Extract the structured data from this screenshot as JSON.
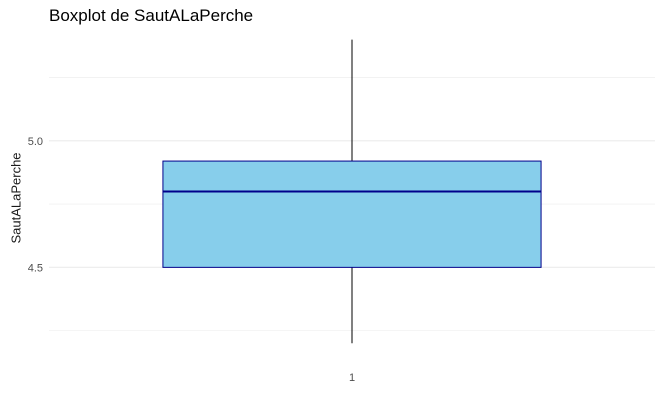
{
  "chart_data": {
    "type": "boxplot",
    "title": "Boxplot de SautALaPerche",
    "xlabel": "",
    "ylabel": "SautALaPerche",
    "categories": [
      "1"
    ],
    "boxes": [
      {
        "category": "1",
        "whisker_low": 4.2,
        "q1": 4.5,
        "median": 4.8,
        "q3": 4.92,
        "whisker_high": 5.4
      }
    ],
    "ylim": [
      4.13,
      5.43
    ],
    "y_ticks": [
      4.5,
      5.0
    ],
    "y_tick_labels": [
      "4.5",
      "5.0"
    ],
    "x_tick_labels": [
      "1"
    ],
    "grid": true,
    "colors": {
      "box_fill": "#87CEEB",
      "box_border": "#00008B",
      "median": "#00008B",
      "whisker": "#000000",
      "grid": "#ebebeb"
    }
  }
}
